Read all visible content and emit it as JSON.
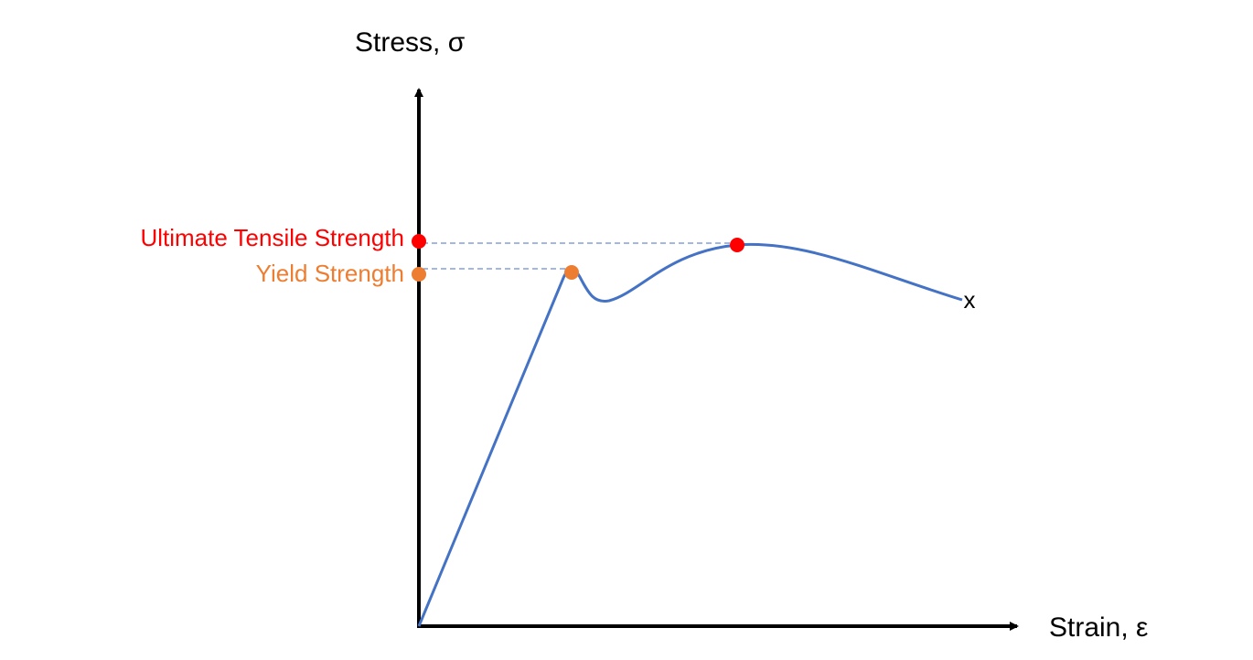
{
  "axes": {
    "y_label": "Stress, σ",
    "x_label": "Strain, ε"
  },
  "points": [
    {
      "label": "Ultimate Tensile Strength",
      "color": "#ff0000"
    },
    {
      "label": "Yield Strength",
      "color": "#ed7d31"
    }
  ],
  "fracture_mark": "x"
}
